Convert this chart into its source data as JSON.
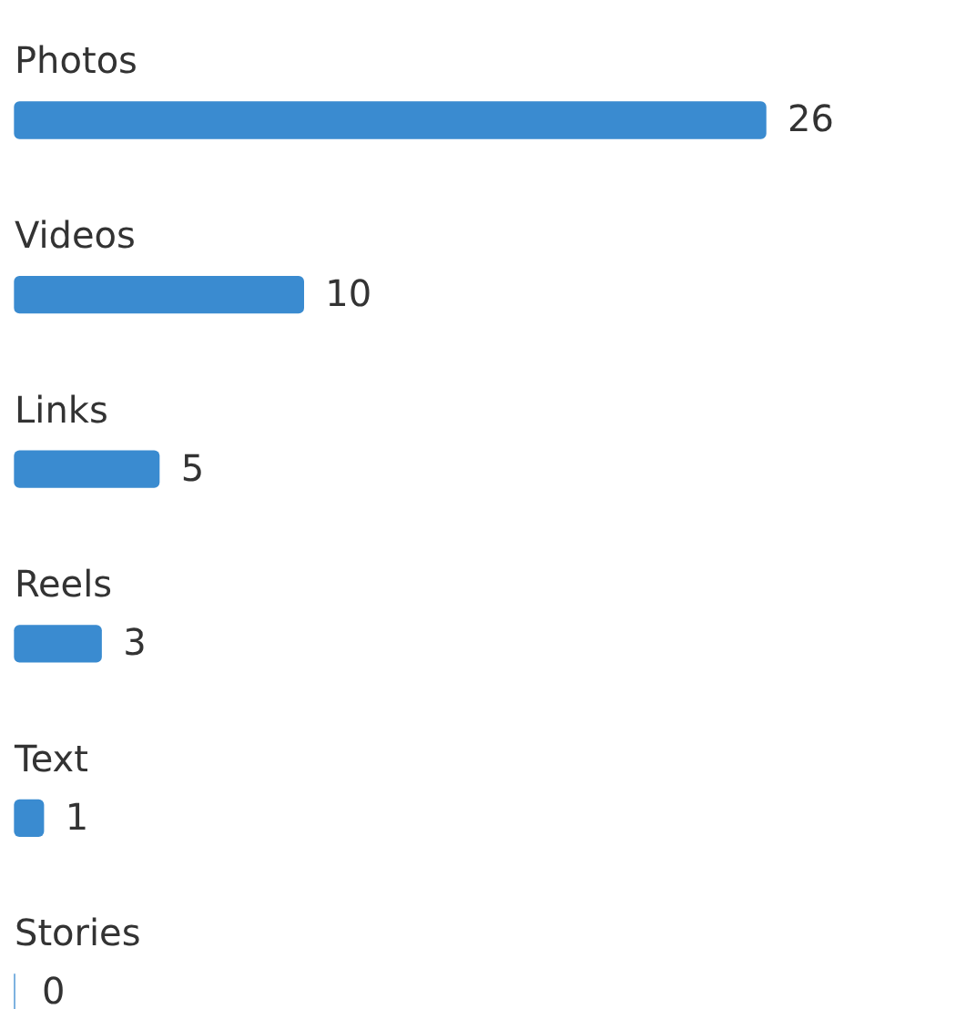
{
  "chart_data": {
    "type": "bar",
    "orientation": "horizontal",
    "categories": [
      "Photos",
      "Videos",
      "Links",
      "Reels",
      "Text",
      "Stories"
    ],
    "values": [
      26,
      10,
      5,
      3,
      1,
      0
    ],
    "color": "#3a8bd0",
    "data_labels": true
  }
}
